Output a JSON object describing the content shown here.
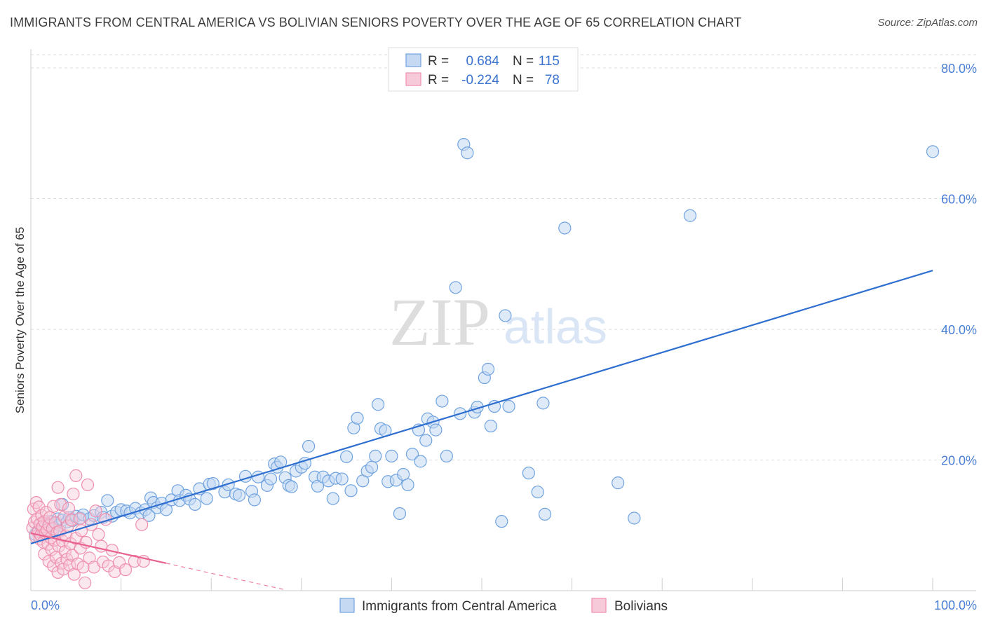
{
  "title": "IMMIGRANTS FROM CENTRAL AMERICA VS BOLIVIAN SENIORS POVERTY OVER THE AGE OF 65 CORRELATION CHART",
  "source": "Source: ZipAtlas.com",
  "watermark": {
    "zip": "ZIP",
    "atlas": "atlas"
  },
  "colors": {
    "blue": "#6fa3e0",
    "blue_fill": "#c5d9f2",
    "blue_line": "#2f6fd0",
    "pink": "#ef8fae",
    "pink_fill": "#f7cad9",
    "pink_line": "#e8628d",
    "grid": "#dddddd",
    "tick_text": "#4a7fd4"
  },
  "legend": {
    "rows": [
      {
        "r_label": "R =",
        "r_value": "0.684",
        "n_label": "N =",
        "n_value": "115"
      },
      {
        "r_label": "R =",
        "r_value": "-0.224",
        "n_label": "N =",
        "n_value": "78"
      }
    ]
  },
  "chart_data": {
    "type": "scatter",
    "title": "IMMIGRANTS FROM CENTRAL AMERICA VS BOLIVIAN SENIORS POVERTY OVER THE AGE OF 65 CORRELATION CHART",
    "xlabel": "",
    "ylabel": "Seniors Poverty Over the Age of 65",
    "xlim": [
      0,
      100
    ],
    "ylim": [
      0,
      84
    ],
    "x_tick_labels": [
      "0.0%",
      "100.0%"
    ],
    "y_ticks": [
      20,
      40,
      60,
      80
    ],
    "y_tick_labels": [
      "20.0%",
      "40.0%",
      "60.0%",
      "80.0%"
    ],
    "grid": true,
    "series": [
      {
        "name": "Immigrants from Central America",
        "color": "#6fa3e0",
        "R": 0.684,
        "N": 115,
        "trend": {
          "x": [
            0,
            100
          ],
          "y": [
            7.2,
            49.0
          ],
          "dashed_to": null
        },
        "points": [
          [
            0.5,
            8.6
          ],
          [
            0.8,
            9.2
          ],
          [
            1.0,
            10.1
          ],
          [
            1.2,
            9.6
          ],
          [
            1.5,
            10.4
          ],
          [
            1.8,
            8.8
          ],
          [
            2.0,
            9.9
          ],
          [
            2.2,
            10.6
          ],
          [
            2.5,
            9.3
          ],
          [
            2.8,
            10.2
          ],
          [
            3.0,
            11.0
          ],
          [
            3.2,
            10.0
          ],
          [
            3.5,
            10.8
          ],
          [
            3.5,
            13.2
          ],
          [
            4.0,
            10.5
          ],
          [
            4.3,
            11.2
          ],
          [
            4.6,
            10.7
          ],
          [
            5.0,
            11.4
          ],
          [
            5.5,
            11.1
          ],
          [
            5.8,
            11.6
          ],
          [
            6.5,
            11.0
          ],
          [
            7.0,
            11.5
          ],
          [
            7.8,
            12.0
          ],
          [
            8.0,
            11.2
          ],
          [
            8.5,
            13.8
          ],
          [
            9.0,
            11.4
          ],
          [
            9.5,
            12.0
          ],
          [
            10.0,
            12.4
          ],
          [
            10.6,
            12.2
          ],
          [
            11.0,
            11.9
          ],
          [
            11.6,
            12.6
          ],
          [
            12.2,
            11.9
          ],
          [
            12.7,
            12.4
          ],
          [
            13.1,
            11.5
          ],
          [
            13.3,
            14.2
          ],
          [
            13.6,
            13.5
          ],
          [
            14.0,
            12.7
          ],
          [
            14.5,
            13.4
          ],
          [
            15.0,
            12.4
          ],
          [
            15.6,
            13.9
          ],
          [
            16.3,
            15.3
          ],
          [
            16.5,
            13.8
          ],
          [
            17.2,
            14.6
          ],
          [
            17.6,
            14.0
          ],
          [
            18.2,
            13.2
          ],
          [
            18.7,
            15.6
          ],
          [
            19.5,
            14.1
          ],
          [
            19.8,
            16.3
          ],
          [
            20.2,
            16.4
          ],
          [
            21.5,
            15.1
          ],
          [
            21.9,
            16.2
          ],
          [
            22.7,
            14.8
          ],
          [
            23.1,
            14.6
          ],
          [
            23.8,
            17.5
          ],
          [
            24.5,
            15.2
          ],
          [
            24.8,
            13.9
          ],
          [
            25.2,
            17.4
          ],
          [
            26.2,
            16.1
          ],
          [
            26.6,
            17.1
          ],
          [
            27.0,
            19.4
          ],
          [
            27.3,
            18.9
          ],
          [
            27.7,
            19.7
          ],
          [
            28.2,
            17.3
          ],
          [
            28.6,
            16.1
          ],
          [
            28.9,
            15.9
          ],
          [
            29.4,
            18.3
          ],
          [
            30.0,
            18.9
          ],
          [
            30.4,
            19.5
          ],
          [
            30.8,
            22.1
          ],
          [
            31.5,
            17.4
          ],
          [
            31.8,
            16.0
          ],
          [
            32.4,
            17.4
          ],
          [
            33.0,
            16.8
          ],
          [
            33.5,
            14.1
          ],
          [
            33.8,
            17.2
          ],
          [
            34.5,
            17.1
          ],
          [
            35.0,
            20.5
          ],
          [
            35.5,
            15.3
          ],
          [
            35.8,
            24.9
          ],
          [
            36.2,
            26.4
          ],
          [
            36.8,
            16.8
          ],
          [
            37.3,
            18.3
          ],
          [
            37.8,
            18.9
          ],
          [
            38.2,
            20.6
          ],
          [
            38.5,
            28.5
          ],
          [
            38.8,
            24.8
          ],
          [
            39.3,
            24.5
          ],
          [
            39.6,
            16.7
          ],
          [
            40.0,
            20.6
          ],
          [
            40.5,
            16.9
          ],
          [
            40.9,
            11.8
          ],
          [
            41.3,
            17.8
          ],
          [
            41.8,
            16.2
          ],
          [
            42.3,
            20.9
          ],
          [
            43.0,
            24.6
          ],
          [
            43.2,
            19.8
          ],
          [
            43.8,
            23.0
          ],
          [
            44.0,
            26.3
          ],
          [
            44.6,
            25.8
          ],
          [
            44.9,
            24.6
          ],
          [
            45.6,
            29.0
          ],
          [
            46.1,
            20.6
          ],
          [
            47.1,
            46.4
          ],
          [
            47.6,
            27.1
          ],
          [
            48.0,
            68.3
          ],
          [
            48.4,
            67.0
          ],
          [
            49.2,
            27.3
          ],
          [
            49.5,
            28.1
          ],
          [
            50.3,
            32.6
          ],
          [
            50.7,
            33.9
          ],
          [
            51.0,
            25.2
          ],
          [
            51.4,
            28.2
          ],
          [
            52.2,
            10.6
          ],
          [
            52.6,
            42.1
          ],
          [
            53.0,
            28.2
          ],
          [
            55.2,
            18.0
          ],
          [
            56.2,
            15.1
          ],
          [
            56.8,
            28.7
          ],
          [
            57.0,
            11.7
          ],
          [
            59.2,
            55.5
          ],
          [
            65.1,
            16.5
          ],
          [
            66.9,
            11.1
          ],
          [
            73.1,
            57.4
          ],
          [
            100.0,
            67.2
          ]
        ]
      },
      {
        "name": "Bolivians",
        "color": "#ef8fae",
        "R": -0.224,
        "N": 78,
        "trend": {
          "x": [
            0,
            15
          ],
          "y": [
            8.8,
            4.2
          ],
          "dashed_to": {
            "x": 28,
            "y": 0.2
          }
        },
        "points": [
          [
            0.2,
            9.6
          ],
          [
            0.3,
            12.5
          ],
          [
            0.4,
            10.5
          ],
          [
            0.5,
            8.3
          ],
          [
            0.6,
            13.5
          ],
          [
            0.7,
            11.0
          ],
          [
            0.8,
            9.0
          ],
          [
            0.9,
            12.8
          ],
          [
            1.0,
            7.9
          ],
          [
            1.0,
            10.2
          ],
          [
            1.1,
            8.5
          ],
          [
            1.2,
            11.5
          ],
          [
            1.3,
            9.8
          ],
          [
            1.4,
            7.4
          ],
          [
            1.5,
            10.6
          ],
          [
            1.5,
            5.6
          ],
          [
            1.6,
            8.8
          ],
          [
            1.7,
            12.0
          ],
          [
            1.8,
            9.3
          ],
          [
            1.9,
            7.1
          ],
          [
            2.0,
            10.0
          ],
          [
            2.0,
            4.5
          ],
          [
            2.1,
            11.2
          ],
          [
            2.2,
            8.1
          ],
          [
            2.3,
            6.3
          ],
          [
            2.4,
            9.5
          ],
          [
            2.5,
            3.8
          ],
          [
            2.5,
            12.9
          ],
          [
            2.6,
            7.7
          ],
          [
            2.7,
            10.4
          ],
          [
            2.8,
            5.1
          ],
          [
            2.9,
            8.9
          ],
          [
            3.0,
            2.8
          ],
          [
            3.0,
            15.8
          ],
          [
            3.1,
            6.8
          ],
          [
            3.2,
            9.1
          ],
          [
            3.3,
            13.2
          ],
          [
            3.4,
            4.2
          ],
          [
            3.5,
            7.6
          ],
          [
            3.6,
            3.3
          ],
          [
            3.7,
            11.3
          ],
          [
            3.8,
            6.0
          ],
          [
            3.9,
            8.4
          ],
          [
            4.0,
            4.8
          ],
          [
            4.1,
            9.9
          ],
          [
            4.2,
            12.6
          ],
          [
            4.3,
            3.9
          ],
          [
            4.4,
            7.2
          ],
          [
            4.5,
            10.8
          ],
          [
            4.6,
            5.4
          ],
          [
            4.7,
            14.8
          ],
          [
            4.8,
            2.5
          ],
          [
            5.0,
            17.6
          ],
          [
            5.0,
            8.0
          ],
          [
            5.2,
            4.1
          ],
          [
            5.4,
            11.0
          ],
          [
            5.5,
            6.5
          ],
          [
            5.6,
            9.2
          ],
          [
            5.8,
            3.6
          ],
          [
            6.0,
            1.2
          ],
          [
            6.1,
            7.4
          ],
          [
            6.3,
            16.2
          ],
          [
            6.5,
            5.0
          ],
          [
            6.7,
            10.1
          ],
          [
            7.0,
            3.6
          ],
          [
            7.2,
            12.2
          ],
          [
            7.5,
            8.6
          ],
          [
            7.8,
            6.8
          ],
          [
            8.0,
            4.4
          ],
          [
            8.3,
            10.9
          ],
          [
            8.6,
            3.8
          ],
          [
            9.0,
            6.2
          ],
          [
            9.3,
            2.9
          ],
          [
            9.8,
            4.3
          ],
          [
            10.5,
            3.2
          ],
          [
            11.5,
            4.5
          ],
          [
            12.3,
            10.1
          ],
          [
            12.5,
            4.5
          ]
        ]
      }
    ]
  }
}
